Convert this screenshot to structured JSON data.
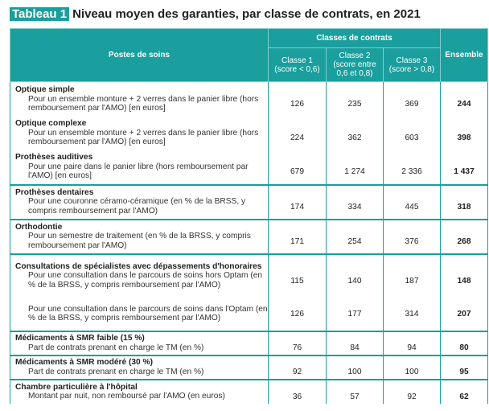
{
  "title": {
    "tag": "Tableau 1",
    "text": "Niveau moyen des garanties, par classe de contrats, en 2021"
  },
  "header": {
    "postes": "Postes de soins",
    "classes": "Classes de contrats",
    "classe1": "Classe 1",
    "classe1_sub": "(score < 0,6)",
    "classe2": "Classe 2",
    "classe2_sub": "(score entre 0,6 et 0,8)",
    "classe3": "Classe 3",
    "classe3_sub": "(score > 0,8)",
    "ensemble": "Ensemble"
  },
  "rows": [
    {
      "title": "Optique simple",
      "desc": "Pour un ensemble monture + 2 verres dans le panier libre (hors remboursement par l'AMO) [en euros]",
      "c1": "126",
      "c2": "235",
      "c3": "369",
      "ens": "244"
    },
    {
      "title": "Optique complexe",
      "desc": "Pour un ensemble monture + 2 verres dans le panier libre (hors remboursement par l'AMO) [en euros]",
      "c1": "224",
      "c2": "362",
      "c3": "603",
      "ens": "398"
    },
    {
      "title": "Prothèses auditives",
      "desc": "Pour une paire dans le panier libre (hors remboursement par l'AMO) [en euros]",
      "c1": "679",
      "c2": "1 274",
      "c3": "2 336",
      "ens": "1 437"
    },
    {
      "title": "Prothèses dentaires",
      "desc": "Pour une couronne céramo-céramique (en % de la BRSS, y compris remboursement par l'AMO)",
      "c1": "174",
      "c2": "334",
      "c3": "445",
      "ens": "318"
    },
    {
      "title": "Orthodontie",
      "desc": "Pour un semestre de traitement (en % de la BRSS, y compris remboursement par l'AMO)",
      "c1": "171",
      "c2": "254",
      "c3": "376",
      "ens": "268"
    },
    {
      "title": "Consultations de spécialistes avec dépassements d'honoraires",
      "desc": "Pour une consultation dans le parcours de soins hors Optam (en % de la BRSS, y compris remboursement par l'AMO)",
      "c1": "115",
      "c2": "140",
      "c3": "187",
      "ens": "148"
    },
    {
      "title": "",
      "desc": "Pour une consultation dans le parcours de soins dans l'Optam (en % de la BRSS, y compris remboursement par l'AMO)",
      "c1": "126",
      "c2": "177",
      "c3": "314",
      "ens": "207"
    },
    {
      "title": "Médicaments à SMR faible (15 %)",
      "desc": "Part de contrats prenant en charge le TM (en %)",
      "c1": "76",
      "c2": "84",
      "c3": "94",
      "ens": "80"
    },
    {
      "title": "Médicaments à SMR modéré (30 %)",
      "desc": "Part de contrats prenant en charge le TM (en %)",
      "c1": "92",
      "c2": "100",
      "c3": "100",
      "ens": "95"
    },
    {
      "title": "Chambre particulière à l'hôpital",
      "desc": "Montant par nuit, non remboursé par l'AMO (en euros)",
      "c1": "36",
      "c2": "57",
      "c3": "92",
      "ens": "62"
    }
  ]
}
